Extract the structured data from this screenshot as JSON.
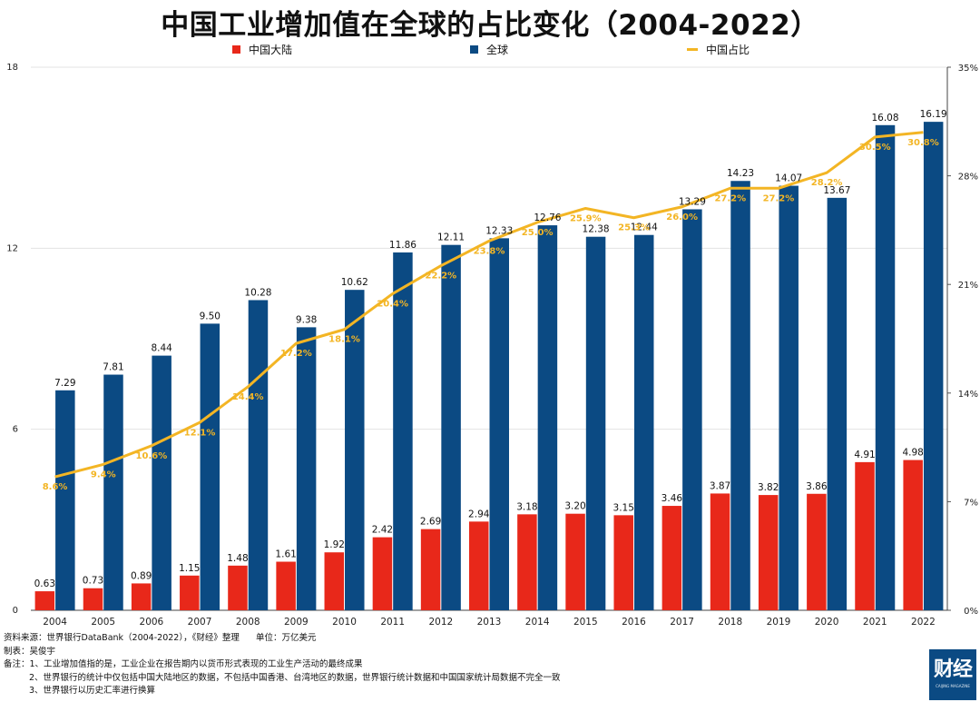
{
  "chart_data": {
    "type": "bar",
    "title": "中国工业增加值在全球的占比变化（2004-2022）",
    "categories": [
      "2004",
      "2005",
      "2006",
      "2007",
      "2008",
      "2009",
      "2010",
      "2011",
      "2012",
      "2013",
      "2014",
      "2015",
      "2016",
      "2017",
      "2018",
      "2019",
      "2020",
      "2021",
      "2022"
    ],
    "series": [
      {
        "name": "中国大陆",
        "type": "bar",
        "axis": "left",
        "color": "#e8281a",
        "values": [
          0.63,
          0.73,
          0.89,
          1.15,
          1.48,
          1.61,
          1.92,
          2.42,
          2.69,
          2.94,
          3.18,
          3.2,
          3.15,
          3.46,
          3.87,
          3.82,
          3.86,
          4.91,
          4.98
        ],
        "labels": [
          "0.63",
          "0.73",
          "0.89",
          "1.15",
          "1.48",
          "1.61",
          "1.92",
          "2.42",
          "2.69",
          "2.94",
          "3.18",
          "3.20",
          "3.15",
          "3.46",
          "3.87",
          "3.82",
          "3.86",
          "4.91",
          "4.98"
        ]
      },
      {
        "name": "全球",
        "type": "bar",
        "axis": "left",
        "color": "#0b4a83",
        "values": [
          7.29,
          7.81,
          8.44,
          9.5,
          10.28,
          9.38,
          10.62,
          11.86,
          12.11,
          12.33,
          12.76,
          12.38,
          12.44,
          13.29,
          14.23,
          14.07,
          13.67,
          16.08,
          16.19
        ],
        "labels": [
          "7.29",
          "7.81",
          "8.44",
          "9.50",
          "10.28",
          "9.38",
          "10.62",
          "11.86",
          "12.11",
          "12.33",
          "12.76",
          "12.38",
          "12.44",
          "13.29",
          "14.23",
          "14.07",
          "13.67",
          "16.08",
          "16.19"
        ]
      },
      {
        "name": "中国占比",
        "type": "line",
        "axis": "right",
        "color": "#f3b524",
        "values": [
          8.6,
          9.4,
          10.6,
          12.1,
          14.4,
          17.2,
          18.1,
          20.4,
          22.2,
          23.8,
          25.0,
          25.9,
          25.3,
          26.0,
          27.2,
          27.2,
          28.2,
          30.5,
          30.8
        ],
        "labels": [
          "8.6%",
          "9.4%",
          "10.6%",
          "12.1%",
          "14.4%",
          "17.2%",
          "18.1%",
          "20.4%",
          "22.2%",
          "23.8%",
          "25.0%",
          "25.9%",
          "25.3%",
          "26.0%",
          "27.2%",
          "27.2%",
          "28.2%",
          "30.5%",
          "30.8%"
        ]
      }
    ],
    "y_left": {
      "range": [
        0,
        18
      ],
      "ticks": [
        0,
        6,
        12,
        18
      ],
      "tick_labels": [
        "0",
        "6",
        "12",
        "18"
      ]
    },
    "y_right": {
      "range": [
        0,
        35
      ],
      "ticks": [
        0,
        7,
        14,
        21,
        28,
        35
      ],
      "tick_labels": [
        "0%",
        "7%",
        "14%",
        "21%",
        "28%",
        "35%"
      ]
    },
    "grid": "horizontal",
    "legend_position": "top"
  },
  "colors": {
    "china": "#e8281a",
    "global": "#0b4a83",
    "share": "#f3b524"
  },
  "footer": {
    "source": "资料来源：世界银行DataBank（2004-2022），《财经》整理      单位：万亿美元",
    "author": "制表：吴俊宇",
    "note1": "备注：1、工业增加值指的是，工业企业在报告期内以货币形式表现的工业生产活动的最终成果",
    "note2": "2、世界银行的统计中仅包括中国大陆地区的数据，不包括中国香港、台湾地区的数据，世界银行统计数据和中国国家统计局数据不完全一致",
    "note3": "3、世界银行以历史汇率进行换算"
  },
  "logo": {
    "text": "财经",
    "sub": "CAIJING MAGAZINE"
  }
}
